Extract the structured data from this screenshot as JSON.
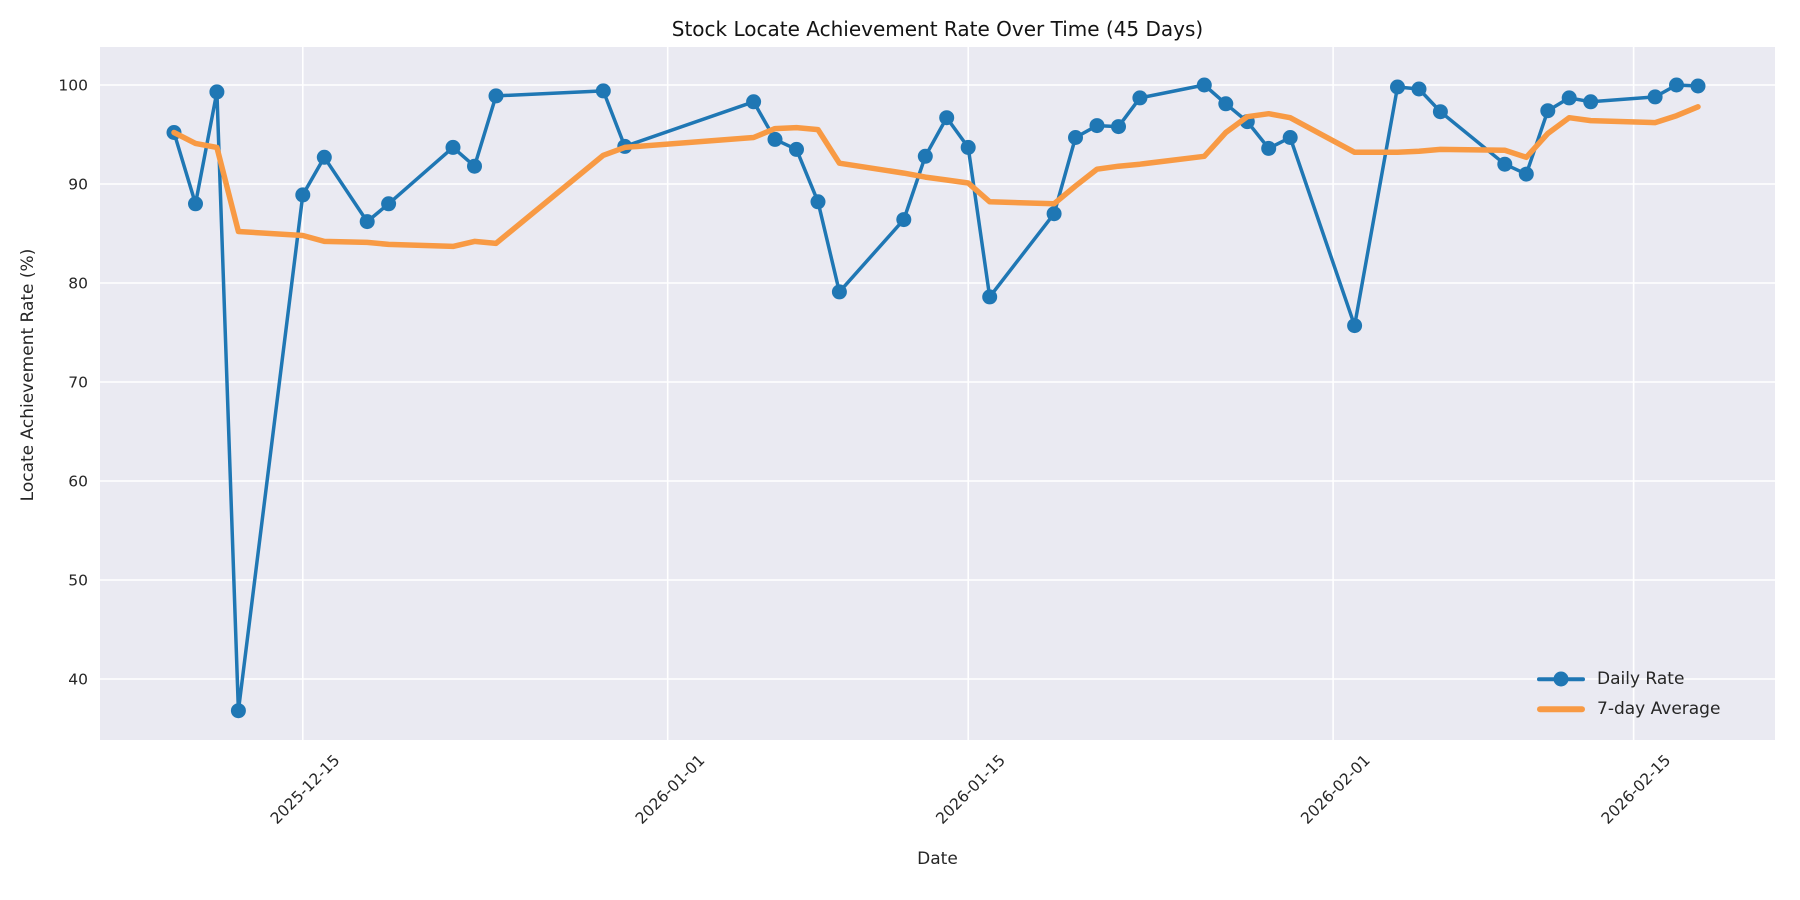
{
  "figure": {
    "background": "#ffffff",
    "plot_background": "#eaeaf2",
    "grid_color": "#ffffff",
    "text_color": "#262626"
  },
  "chart_data": {
    "type": "line",
    "title": "Stock Locate Achievement Rate Over Time (45 Days)",
    "xlabel": "Date",
    "ylabel": "Locate Achievement Rate (%)",
    "x_tick_labels": [
      "2025-12-15",
      "2026-01-01",
      "2026-01-15",
      "2026-02-01",
      "2026-02-15"
    ],
    "y_ticks": [
      40,
      50,
      60,
      70,
      80,
      90,
      100
    ],
    "ylim": [
      33.8,
      103.8
    ],
    "xlim": [
      "2025-12-05",
      "2026-02-21"
    ],
    "grid": true,
    "legend_position": "lower right",
    "x": [
      "2025-12-09",
      "2025-12-10",
      "2025-12-11",
      "2025-12-12",
      "2025-12-15",
      "2025-12-16",
      "2025-12-18",
      "2025-12-19",
      "2025-12-22",
      "2025-12-23",
      "2025-12-24",
      "2025-12-29",
      "2025-12-30",
      "2026-01-05",
      "2026-01-06",
      "2026-01-07",
      "2026-01-08",
      "2026-01-09",
      "2026-01-12",
      "2026-01-13",
      "2026-01-14",
      "2026-01-15",
      "2026-01-16",
      "2026-01-19",
      "2026-01-20",
      "2026-01-21",
      "2026-01-22",
      "2026-01-23",
      "2026-01-26",
      "2026-01-27",
      "2026-01-28",
      "2026-01-29",
      "2026-01-30",
      "2026-02-02",
      "2026-02-04",
      "2026-02-05",
      "2026-02-06",
      "2026-02-09",
      "2026-02-10",
      "2026-02-11",
      "2026-02-12",
      "2026-02-13",
      "2026-02-16",
      "2026-02-17",
      "2026-02-18"
    ],
    "series": [
      {
        "name": "Daily Rate",
        "color": "#1f77b4",
        "marker": "circle",
        "line_width": 3.5,
        "values": [
          95.2,
          88.0,
          99.3,
          36.8,
          88.9,
          92.7,
          86.2,
          88.0,
          93.7,
          91.8,
          98.9,
          99.4,
          93.8,
          98.3,
          94.5,
          93.5,
          88.2,
          79.1,
          86.4,
          92.8,
          96.7,
          93.7,
          78.6,
          87.0,
          94.7,
          95.9,
          95.8,
          98.7,
          100.0,
          98.1,
          96.3,
          93.6,
          94.7,
          75.7,
          99.8,
          99.6,
          97.3,
          92.0,
          91.0,
          97.4,
          98.7,
          98.3,
          98.8,
          100.0,
          99.9
        ]
      },
      {
        "name": "7-day Average",
        "color": "#f89a44",
        "marker": "none",
        "line_width": 5.5,
        "values": [
          95.2,
          94.1,
          93.7,
          85.2,
          84.8,
          84.2,
          84.1,
          83.9,
          83.7,
          84.2,
          84.0,
          92.9,
          93.7,
          94.7,
          95.6,
          95.7,
          95.5,
          92.1,
          91.1,
          90.7,
          90.4,
          90.1,
          88.2,
          88.0,
          89.8,
          91.5,
          91.8,
          92.0,
          92.8,
          95.2,
          96.8,
          97.1,
          96.7,
          93.2,
          93.2,
          93.3,
          93.5,
          93.4,
          92.7,
          95.1,
          96.7,
          96.4,
          96.2,
          96.9,
          97.8
        ]
      }
    ]
  }
}
